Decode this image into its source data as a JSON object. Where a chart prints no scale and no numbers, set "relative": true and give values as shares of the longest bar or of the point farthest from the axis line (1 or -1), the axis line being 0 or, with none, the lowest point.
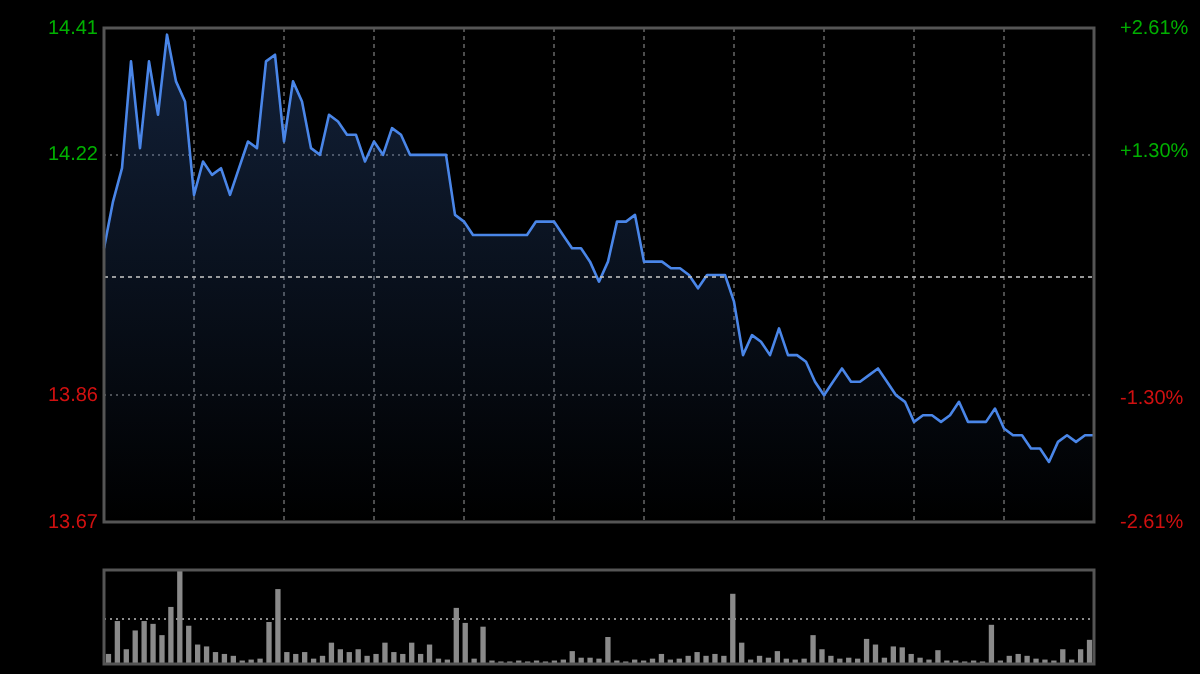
{
  "chart_data": [
    {
      "type": "area",
      "categories": [
        null,
        null,
        null,
        null,
        null,
        null,
        null,
        null,
        null,
        null,
        null,
        null,
        null,
        null,
        null,
        null,
        null,
        null,
        null,
        null,
        null,
        null,
        null,
        null,
        null,
        null,
        null,
        null,
        null,
        null,
        null,
        null,
        null,
        null,
        null,
        null,
        null,
        null,
        null,
        null,
        null,
        null,
        null,
        null,
        null,
        null,
        null,
        null,
        null,
        null,
        null,
        null,
        null,
        null,
        null,
        null,
        null,
        null,
        null,
        null,
        null,
        null,
        null,
        null,
        null,
        null,
        null,
        null,
        null,
        null,
        null,
        null,
        null,
        null,
        null,
        null,
        null,
        null,
        null,
        null,
        null,
        null,
        null,
        null,
        null,
        null,
        null,
        null,
        null,
        null,
        null,
        null,
        null,
        null,
        null,
        null,
        null,
        null,
        null,
        null,
        null,
        null,
        null,
        null,
        null,
        null,
        null,
        null,
        null,
        null,
        null
      ],
      "color": "#4a86e8",
      "values": [
        14.08,
        14.15,
        14.2,
        14.36,
        14.23,
        14.36,
        14.28,
        14.4,
        14.33,
        14.3,
        14.16,
        14.21,
        14.19,
        14.2,
        14.16,
        14.2,
        14.24,
        14.23,
        14.36,
        14.37,
        14.24,
        14.33,
        14.3,
        14.23,
        14.22,
        14.28,
        14.27,
        14.25,
        14.25,
        14.21,
        14.24,
        14.22,
        14.26,
        14.25,
        14.22,
        14.22,
        14.22,
        14.22,
        14.22,
        14.13,
        14.12,
        14.1,
        14.1,
        14.1,
        14.1,
        14.1,
        14.1,
        14.1,
        14.12,
        14.12,
        14.12,
        14.1,
        14.08,
        14.08,
        14.06,
        14.03,
        14.06,
        14.12,
        14.12,
        14.13,
        14.06,
        14.06,
        14.06,
        14.05,
        14.05,
        14.04,
        14.02,
        14.04,
        14.04,
        14.04,
        14,
        13.92,
        13.95,
        13.94,
        13.92,
        13.96,
        13.92,
        13.92,
        13.91,
        13.88,
        13.86,
        13.88,
        13.9,
        13.88,
        13.88,
        13.89,
        13.9,
        13.88,
        13.86,
        13.85,
        13.82,
        13.83,
        13.83,
        13.82,
        13.83,
        13.85,
        13.82,
        13.82,
        13.82,
        13.84,
        13.81,
        13.8,
        13.8,
        13.78,
        13.78,
        13.76,
        13.79,
        13.8,
        13.79,
        13.8,
        13.8
      ],
      "ylim": [
        13.67,
        14.41
      ],
      "yticks": [
        13.67,
        13.86,
        14.22,
        14.41
      ],
      "y2lim": [
        -2.61,
        2.61
      ],
      "y2ticks": [
        {
          "value": -2.61,
          "label": "-2.61%"
        },
        {
          "value": -1.3,
          "label": "-1.30%"
        },
        {
          "value": 1.3,
          "label": "+1.30%"
        },
        {
          "value": 2.61,
          "label": "+2.61%"
        }
      ],
      "ref_lines": [
        {
          "axis": "y",
          "value": 14.04
        }
      ],
      "marker": "none",
      "grid": true
    },
    {
      "type": "bar",
      "relative": true,
      "categories": [
        null,
        null,
        null,
        null,
        null,
        null,
        null,
        null,
        null,
        null,
        null,
        null,
        null,
        null,
        null,
        null,
        null,
        null,
        null,
        null,
        null,
        null,
        null,
        null,
        null,
        null,
        null,
        null,
        null,
        null,
        null,
        null,
        null,
        null,
        null,
        null,
        null,
        null,
        null,
        null,
        null,
        null,
        null,
        null,
        null,
        null,
        null,
        null,
        null,
        null,
        null,
        null,
        null,
        null,
        null,
        null,
        null,
        null,
        null,
        null,
        null,
        null,
        null,
        null,
        null,
        null,
        null,
        null,
        null,
        null,
        null,
        null,
        null,
        null,
        null,
        null,
        null,
        null,
        null,
        null,
        null,
        null,
        null,
        null,
        null,
        null,
        null,
        null,
        null,
        null,
        null,
        null,
        null,
        null,
        null,
        null,
        null,
        null,
        null,
        null,
        null,
        null,
        null,
        null,
        null,
        null,
        null,
        null,
        null,
        null,
        null
      ],
      "color": "#8a8a8a",
      "values": [
        0.1,
        0.45,
        0.15,
        0.35,
        0.45,
        0.42,
        0.3,
        0.6,
        1,
        0.4,
        0.2,
        0.18,
        0.12,
        0.1,
        0.08,
        0.03,
        0.04,
        0.05,
        0.44,
        0.79,
        0.12,
        0.1,
        0.12,
        0.05,
        0.08,
        0.22,
        0.15,
        0.12,
        0.15,
        0.08,
        0.1,
        0.22,
        0.12,
        0.1,
        0.22,
        0.1,
        0.2,
        0.05,
        0.04,
        0.59,
        0.43,
        0.05,
        0.39,
        0.03,
        0.02,
        0.02,
        0.03,
        0.02,
        0.03,
        0.02,
        0.03,
        0.04,
        0.13,
        0.06,
        0.06,
        0.05,
        0.28,
        0.03,
        0.02,
        0.04,
        0.03,
        0.05,
        0.1,
        0.04,
        0.05,
        0.08,
        0.12,
        0.08,
        0.1,
        0.08,
        0.74,
        0.22,
        0.04,
        0.08,
        0.06,
        0.13,
        0.05,
        0.04,
        0.05,
        0.3,
        0.15,
        0.08,
        0.05,
        0.06,
        0.05,
        0.26,
        0.2,
        0.06,
        0.18,
        0.17,
        0.1,
        0.06,
        0.04,
        0.14,
        0.03,
        0.03,
        0.02,
        0.03,
        0.02,
        0.41,
        0.03,
        0.08,
        0.1,
        0.08,
        0.05,
        0.04,
        0.03,
        0.15,
        0.04,
        0.15,
        0.25
      ],
      "ref_lines": [
        {
          "axis": "y",
          "value": 0.48,
          "color": "#8c8c8c",
          "line_style": "dotted"
        }
      ]
    }
  ]
}
